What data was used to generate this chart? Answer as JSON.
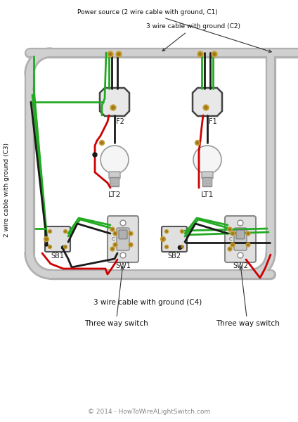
{
  "bg_color": "#ffffff",
  "wire_colors": {
    "black": "#1a1a1a",
    "red": "#cc0000",
    "green": "#22aa22",
    "conduit_outer": "#b0b0b0",
    "conduit_inner": "#d0d0d0",
    "box_fill": "#e8e8e8",
    "box_stroke": "#444444",
    "gold": "#c8a030",
    "switch_body": "#d0d0d0",
    "bulb_fill": "#f0f0f0",
    "bulb_base": "#c0c0c0"
  },
  "labels": {
    "power_source": "Power source (2 wire cable with ground, C1)",
    "c2": "3 wire cable with ground (C2)",
    "c3": "2 wire cable with ground (C3)",
    "c4": "3 wire cable with ground (C4)",
    "f1": "F1",
    "f2": "F2",
    "lt1": "LT1",
    "lt2": "LT2",
    "sb1": "SB1",
    "sb2": "SB2",
    "sw1": "SW1",
    "sw2": "SW2",
    "three_way_1": "Three way switch",
    "three_way_2": "Three way switch",
    "copyright": "© 2014 - HowToWireALightSwitch.com"
  }
}
